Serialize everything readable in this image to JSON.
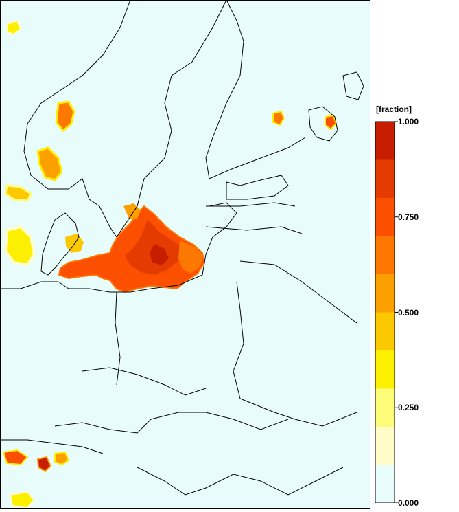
{
  "legend": {
    "title": "[fraction]",
    "bins": [
      {
        "from": 0.0,
        "to": 0.1,
        "color": "#e8fcfc"
      },
      {
        "from": 0.1,
        "to": 0.2,
        "color": "#fffcc8"
      },
      {
        "from": 0.2,
        "to": 0.3,
        "color": "#fcfc78"
      },
      {
        "from": 0.3,
        "to": 0.4,
        "color": "#fcf000"
      },
      {
        "from": 0.4,
        "to": 0.5,
        "color": "#fcc800"
      },
      {
        "from": 0.5,
        "to": 0.6,
        "color": "#fca000"
      },
      {
        "from": 0.6,
        "to": 0.7,
        "color": "#fc7800"
      },
      {
        "from": 0.7,
        "to": 0.8,
        "color": "#fc5000"
      },
      {
        "from": 0.8,
        "to": 0.9,
        "color": "#e43c00"
      },
      {
        "from": 0.9,
        "to": 1.0,
        "color": "#c81e00"
      }
    ],
    "ticks": [
      {
        "value": 1.0,
        "label": "1.000"
      },
      {
        "value": 0.75,
        "label": "0.750"
      },
      {
        "value": 0.5,
        "label": "0.500"
      },
      {
        "value": 0.25,
        "label": "0.250"
      },
      {
        "value": 0.0,
        "label": "0.000"
      }
    ]
  },
  "colors": {
    "background": "#e8fcfc",
    "borders": "#000000",
    "coast_edge": "#3cb4c8"
  }
}
